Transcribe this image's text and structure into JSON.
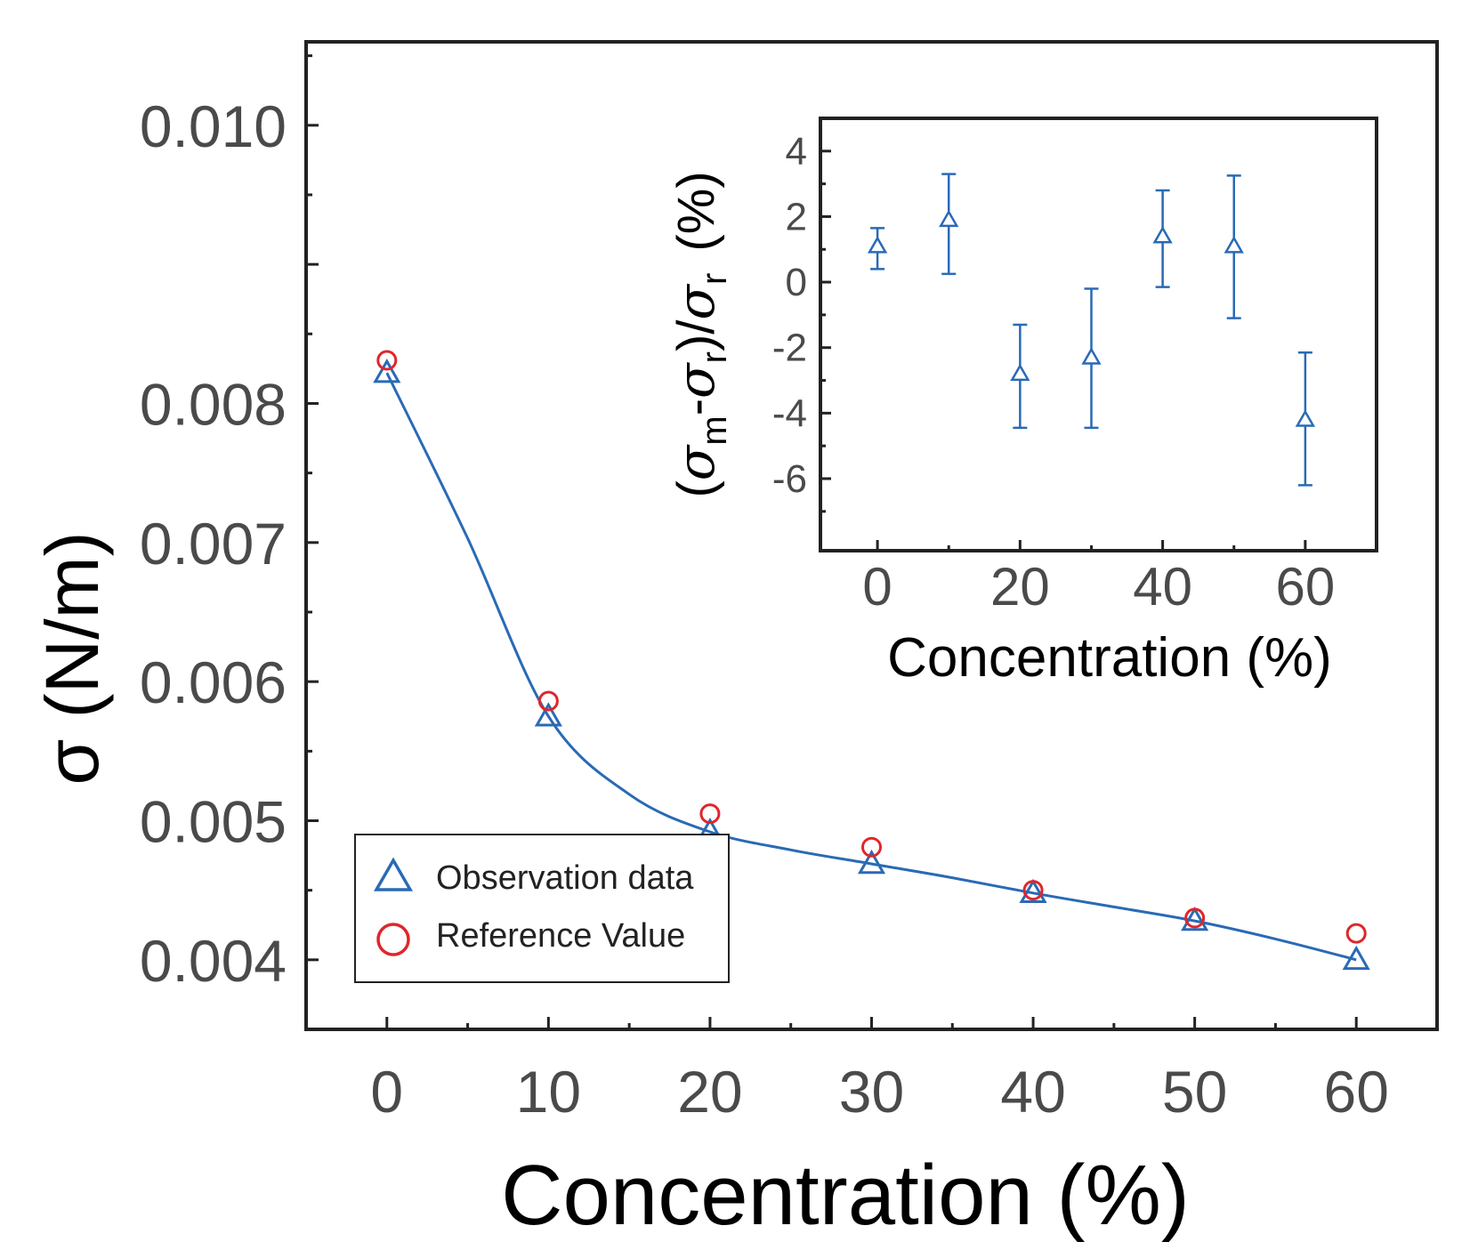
{
  "chart_data": [
    {
      "type": "line",
      "xlabel": "Concentration (%)",
      "ylabel": "σ (N/m)",
      "xlim": [
        -5,
        65
      ],
      "ylim": [
        0.0035,
        0.0106
      ],
      "x_ticks": [
        0,
        10,
        20,
        30,
        40,
        50,
        60
      ],
      "y_ticks": [
        0.004,
        0.005,
        0.006,
        0.007,
        0.008,
        0.01
      ],
      "x_tick_labels": [
        "0",
        "10",
        "20",
        "30",
        "40",
        "50",
        "60"
      ],
      "y_tick_labels": [
        "0.004",
        "0.005",
        "0.006",
        "0.007",
        "0.008",
        "0.010"
      ],
      "x": [
        0,
        10,
        20,
        30,
        40,
        50,
        60
      ],
      "series": [
        {
          "name": "Observation data",
          "marker": "triangle",
          "color": "#2a6ab5",
          "values": [
            0.00822,
            0.00575,
            0.00492,
            0.00469,
            0.00448,
            0.00428,
            0.004
          ]
        },
        {
          "name": "Reference Value",
          "marker": "circle",
          "color": "#e0262a",
          "values": [
            0.00831,
            0.00586,
            0.00505,
            0.00481,
            0.0045,
            0.0043,
            0.00419
          ]
        }
      ],
      "fit_curve": {
        "color": "#2a6ab5",
        "x": [
          0,
          5,
          10,
          15,
          20,
          25,
          30,
          35,
          40,
          45,
          50,
          55,
          60
        ],
        "values": [
          0.00822,
          0.00703,
          0.00575,
          0.00519,
          0.00492,
          0.00479,
          0.00469,
          0.00459,
          0.00448,
          0.00438,
          0.00428,
          0.00415,
          0.004
        ]
      },
      "legend": {
        "position": "bottom-left",
        "entries": [
          "Observation data",
          "Reference Value"
        ]
      },
      "grid": false
    },
    {
      "type": "scatter",
      "inset": true,
      "xlabel": "Concentration (%)",
      "ylabel": "(σm-σr)/σr (%)",
      "ylabel_parts": {
        "open": "(",
        "sigma": "σ",
        "sub_m": "m",
        "minus": "-",
        "sub_r": "r",
        "close": ")/",
        "unit": "(%)"
      },
      "xlim": [
        -8,
        70
      ],
      "ylim": [
        -8.2,
        5.0
      ],
      "x_ticks": [
        0,
        20,
        40,
        60
      ],
      "y_ticks": [
        -6,
        -4,
        -2,
        0,
        2,
        4
      ],
      "x_tick_labels": [
        "0",
        "20",
        "40",
        "60"
      ],
      "y_tick_labels": [
        "-6",
        "-4",
        "-2",
        "0",
        "2",
        "4"
      ],
      "x": [
        0,
        10,
        20,
        30,
        40,
        50,
        60
      ],
      "y": [
        1.1,
        1.9,
        -2.8,
        -2.3,
        1.4,
        1.1,
        -4.2
      ],
      "error_low": [
        0.4,
        0.25,
        -4.45,
        -4.45,
        -0.15,
        -1.1,
        -6.2
      ],
      "error_high": [
        1.65,
        3.3,
        -1.3,
        -0.2,
        2.8,
        3.25,
        -2.15
      ],
      "marker": "triangle",
      "color": "#2a6ab5",
      "grid": false
    }
  ]
}
